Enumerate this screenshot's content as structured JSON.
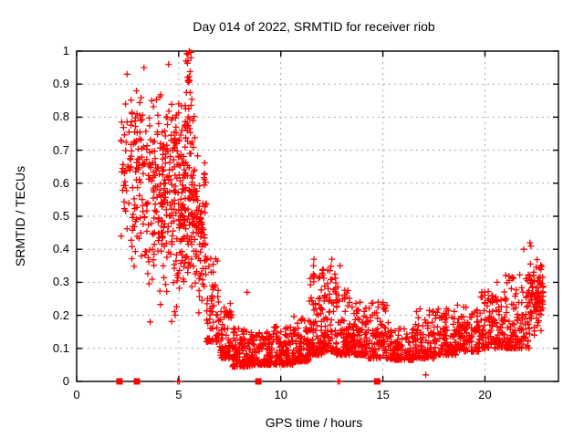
{
  "chart_data": {
    "type": "scatter",
    "title": "Day 014 of 2022, SRMTID for receiver riob",
    "xlabel": "GPS time / hours",
    "ylabel": "SRMTID / TECUs",
    "xlim": [
      0,
      23.6
    ],
    "ylim": [
      0,
      1
    ],
    "xtick_labels": [
      "0",
      "5",
      "10",
      "15",
      "20"
    ],
    "xtick_values": [
      0,
      5,
      10,
      15,
      20
    ],
    "ytick_labels": [
      "0",
      "0.1",
      "0.2",
      "0.3",
      "0.4",
      "0.5",
      "0.6",
      "0.7",
      "0.8",
      "0.9",
      "1"
    ],
    "ytick_values": [
      0,
      0.1,
      0.2,
      0.3,
      0.4,
      0.5,
      0.6,
      0.7,
      0.8,
      0.9,
      1
    ],
    "grid": "dashed",
    "legend": "none",
    "marker": "plus",
    "marker_color": "#ff0000",
    "grid_color": "#a8a8a8",
    "axis_color": "#000000",
    "series_name": "SRMTID",
    "density_bands": [
      [
        2.15,
        2.6,
        30,
        0.42,
        0.9,
        "tri"
      ],
      [
        2.6,
        3.3,
        80,
        0.33,
        0.93,
        "tri"
      ],
      [
        3.3,
        4.05,
        85,
        0.25,
        0.95,
        "tri"
      ],
      [
        4.05,
        4.65,
        95,
        0.2,
        0.9,
        "tri"
      ],
      [
        4.65,
        5.3,
        120,
        0.15,
        0.9,
        "tri"
      ],
      [
        5.3,
        5.8,
        100,
        0.22,
        0.98,
        "tri"
      ],
      [
        5.35,
        5.62,
        12,
        0.9,
        1.0,
        "uni"
      ],
      [
        5.8,
        6.35,
        80,
        0.18,
        0.72,
        "tri"
      ],
      [
        6.35,
        7.0,
        65,
        0.12,
        0.38,
        "low"
      ],
      [
        7.0,
        7.6,
        70,
        0.07,
        0.24,
        "low"
      ],
      [
        7.6,
        8.6,
        115,
        0.045,
        0.16,
        "low"
      ],
      [
        8.6,
        9.6,
        115,
        0.05,
        0.15,
        "low"
      ],
      [
        9.6,
        10.6,
        105,
        0.05,
        0.17,
        "low"
      ],
      [
        10.6,
        11.4,
        95,
        0.06,
        0.2,
        "low"
      ],
      [
        11.4,
        12.0,
        85,
        0.08,
        0.33,
        "low"
      ],
      [
        12.0,
        12.7,
        95,
        0.09,
        0.35,
        "low"
      ],
      [
        12.7,
        13.4,
        95,
        0.08,
        0.3,
        "low"
      ],
      [
        13.4,
        14.2,
        95,
        0.08,
        0.25,
        "low"
      ],
      [
        14.2,
        15.3,
        105,
        0.07,
        0.24,
        "low"
      ],
      [
        15.3,
        16.6,
        115,
        0.065,
        0.16,
        "low"
      ],
      [
        16.6,
        17.6,
        95,
        0.07,
        0.22,
        "low"
      ],
      [
        17.6,
        18.6,
        100,
        0.08,
        0.22,
        "low"
      ],
      [
        18.6,
        19.8,
        115,
        0.09,
        0.24,
        "low"
      ],
      [
        19.8,
        21.0,
        120,
        0.1,
        0.28,
        "low"
      ],
      [
        21.0,
        22.2,
        130,
        0.1,
        0.33,
        "low"
      ],
      [
        22.2,
        22.85,
        90,
        0.13,
        0.38,
        "tri"
      ]
    ],
    "outlier_points": [
      [
        2.47,
        0.93
      ],
      [
        3.3,
        0.95
      ],
      [
        3.6,
        0.18
      ],
      [
        4.5,
        0.96
      ],
      [
        5.35,
        0.97
      ],
      [
        5.45,
        0.99
      ],
      [
        5.52,
        1.0
      ],
      [
        8.35,
        0.27
      ],
      [
        11.6,
        0.35
      ],
      [
        11.62,
        0.37
      ],
      [
        12.5,
        0.37
      ],
      [
        12.9,
        0.35
      ],
      [
        17.1,
        0.02
      ],
      [
        20.6,
        0.3
      ],
      [
        21.9,
        0.4
      ],
      [
        22.2,
        0.42
      ],
      [
        22.25,
        0.41
      ]
    ],
    "baseline_plus_hours": [
      4.95,
      5.03,
      12.8,
      12.88
    ],
    "baseline_square_hours": [
      2.1,
      2.95,
      8.9,
      14.72
    ]
  }
}
